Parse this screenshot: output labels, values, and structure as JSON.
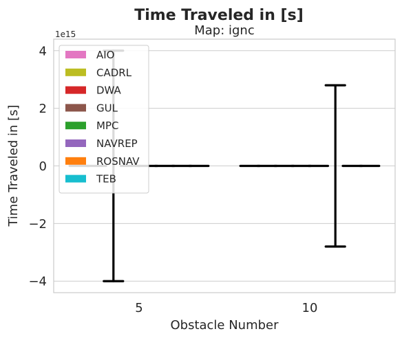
{
  "chart_data": {
    "type": "bar",
    "title": "Time Traveled in [s]",
    "subtitle": "Map: ignc",
    "xlabel": "Obstacle Number",
    "ylabel": "Time Traveled in [s]",
    "y_multiplier_label": "1e15",
    "categories": [
      "5",
      "10"
    ],
    "ylim": [
      -4.4,
      4.4
    ],
    "yticks": [
      -4,
      -2,
      0,
      2,
      4
    ],
    "ytick_labels": [
      "−4",
      "−2",
      "0",
      "2",
      "4"
    ],
    "grid": true,
    "legend_position": "top-left",
    "series": [
      {
        "name": "AIO",
        "color": "#e377c2",
        "values": [
          0,
          0
        ],
        "err": [
          0,
          0
        ]
      },
      {
        "name": "CADRL",
        "color": "#bcbd22",
        "values": [
          0,
          0
        ],
        "err": [
          0,
          0
        ]
      },
      {
        "name": "DWA",
        "color": "#d62728",
        "values": [
          0,
          0
        ],
        "err": [
          4,
          0
        ]
      },
      {
        "name": "GUL",
        "color": "#8c564b",
        "values": [
          0,
          0
        ],
        "err": [
          0,
          0
        ]
      },
      {
        "name": "MPC",
        "color": "#2ca02c",
        "values": [
          0,
          0
        ],
        "err": [
          0,
          0
        ]
      },
      {
        "name": "NAVREP",
        "color": "#9467bd",
        "values": [
          0,
          0
        ],
        "err": [
          0,
          2.8
        ]
      },
      {
        "name": "ROSNAV",
        "color": "#ff7f0e",
        "values": [
          0,
          0
        ],
        "err": [
          0,
          0
        ]
      },
      {
        "name": "TEB",
        "color": "#17becf",
        "values": [
          0,
          0
        ],
        "err": [
          0,
          0
        ]
      }
    ]
  }
}
